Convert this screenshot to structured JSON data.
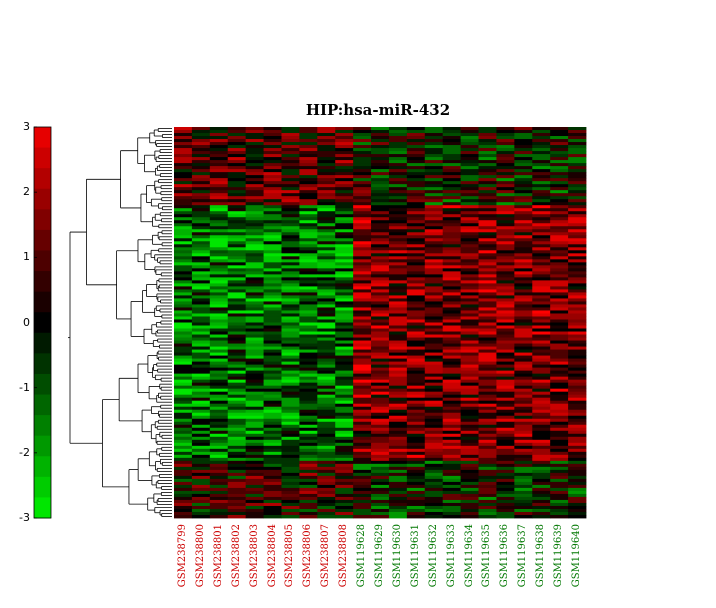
{
  "chart_data": {
    "type": "heatmap",
    "title": "HIP:hsa-miR-432",
    "columns": [
      {
        "label": "GSM238799",
        "group": "red"
      },
      {
        "label": "GSM238800",
        "group": "red"
      },
      {
        "label": "GSM238801",
        "group": "red"
      },
      {
        "label": "GSM238802",
        "group": "red"
      },
      {
        "label": "GSM238803",
        "group": "red"
      },
      {
        "label": "GSM238804",
        "group": "red"
      },
      {
        "label": "GSM238805",
        "group": "red"
      },
      {
        "label": "GSM238806",
        "group": "red"
      },
      {
        "label": "GSM238807",
        "group": "red"
      },
      {
        "label": "GSM238808",
        "group": "red"
      },
      {
        "label": "GSM119628",
        "group": "green"
      },
      {
        "label": "GSM119629",
        "group": "green"
      },
      {
        "label": "GSM119630",
        "group": "green"
      },
      {
        "label": "GSM119631",
        "group": "green"
      },
      {
        "label": "GSM119632",
        "group": "green"
      },
      {
        "label": "GSM119633",
        "group": "green"
      },
      {
        "label": "GSM119634",
        "group": "green"
      },
      {
        "label": "GSM119635",
        "group": "green"
      },
      {
        "label": "GSM119636",
        "group": "green"
      },
      {
        "label": "GSM119637",
        "group": "green"
      },
      {
        "label": "GSM119638",
        "group": "green"
      },
      {
        "label": "GSM119639",
        "group": "green"
      },
      {
        "label": "GSM119640",
        "group": "green"
      }
    ],
    "colorbar": {
      "min": -3,
      "max": 3,
      "ticks": [
        3,
        2,
        1,
        0,
        -1,
        -2,
        -3
      ],
      "low_color": "#00ff00",
      "mid_color": "#000000",
      "high_color": "#ff0000"
    },
    "row_dendrogram": true,
    "colors": {
      "group_red": "#cc0000",
      "group_green": "#007700"
    }
  }
}
